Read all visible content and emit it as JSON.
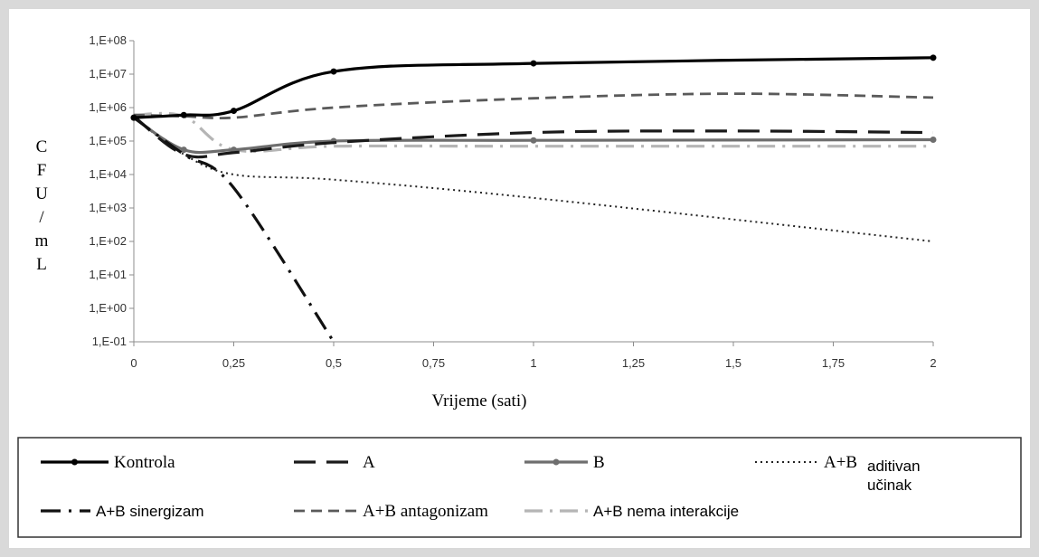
{
  "chart_data": {
    "type": "line",
    "title": "",
    "xlabel": "Vrijeme (sati)",
    "ylabel": "CFU/mL",
    "ylabel_chars": [
      "C",
      "F",
      "U",
      "/",
      "m",
      "L"
    ],
    "y_scale": "log",
    "xlim": [
      0,
      2
    ],
    "ylim_exp": [
      -1,
      8
    ],
    "x_ticks": [
      0,
      0.25,
      0.5,
      0.75,
      1,
      1.25,
      1.5,
      1.75,
      2
    ],
    "x_tick_labels": [
      "0",
      "0,25",
      "0,5",
      "0,75",
      "1",
      "1,25",
      "1,5",
      "1,75",
      "2"
    ],
    "y_tick_labels": [
      "1,E+08",
      "1,E+07",
      "1,E+06",
      "1,E+05",
      "1,E+04",
      "1,E+03",
      "1,E+02",
      "1,E+01",
      "1,E+00",
      "1,E-01"
    ],
    "grid": false,
    "legend_position": "bottom",
    "series": [
      {
        "name": "Kontrola",
        "color": "#000000",
        "dash": "none",
        "width": 3.2,
        "markers": true,
        "x": [
          0,
          0.125,
          0.25,
          0.5,
          1,
          2
        ],
        "y": [
          500000.0,
          600000.0,
          800000.0,
          12000000.0,
          21000000.0,
          31000000.0
        ]
      },
      {
        "name": "A",
        "color": "#1a1a1a",
        "dash": "24 12",
        "width": 3.2,
        "markers": false,
        "x": [
          0,
          0.125,
          0.25,
          0.5,
          1,
          1.5,
          2
        ],
        "y": [
          550000.0,
          40000.0,
          45000.0,
          90000.0,
          180000.0,
          200000.0,
          180000.0
        ]
      },
      {
        "name": "B",
        "color": "#6e6e6e",
        "dash": "none",
        "width": 3.2,
        "markers": true,
        "x": [
          0,
          0.125,
          0.25,
          0.5,
          1,
          2
        ],
        "y": [
          500000.0,
          55000.0,
          55000.0,
          100000.0,
          105000.0,
          110000.0
        ]
      },
      {
        "name": "A+B aditivan učinak",
        "color": "#222222",
        "dash": "2 4",
        "width": 2,
        "markers": false,
        "x": [
          0,
          0.125,
          0.25,
          0.5,
          1,
          2
        ],
        "y": [
          500000.0,
          40000.0,
          10000.0,
          7000.0,
          2000.0,
          100.0
        ]
      },
      {
        "name": "A+B sinergizam",
        "color": "#111111",
        "dash": "22 9 3 9",
        "width": 3.2,
        "markers": false,
        "x": [
          0,
          0.125,
          0.25,
          0.5
        ],
        "y": [
          500000.0,
          40000.0,
          4000.0,
          0.1
        ]
      },
      {
        "name": "A+B antagonizam",
        "color": "#5a5a5a",
        "dash": "12 7",
        "width": 2.8,
        "markers": false,
        "x": [
          0,
          0.125,
          0.25,
          0.5,
          1,
          1.5,
          2
        ],
        "y": [
          600000.0,
          550000.0,
          500000.0,
          1000000.0,
          1900000.0,
          2600000.0,
          2000000.0
        ]
      },
      {
        "name": "A+B nema interakcije",
        "color": "#b5b5b5",
        "dash": "20 8 3 8",
        "width": 3.2,
        "markers": false,
        "x": [
          0,
          0.125,
          0.25,
          0.5,
          1,
          2
        ],
        "y": [
          600000.0,
          550000.0,
          55000.0,
          70000.0,
          70000.0,
          70000.0
        ]
      }
    ],
    "legend": {
      "items": [
        {
          "label": "Kontrola",
          "series": 0
        },
        {
          "label": "A",
          "series": 1
        },
        {
          "label": "B",
          "series": 2
        },
        {
          "label": "A+B",
          "label2a": "aditivan",
          "label2b": "učinak",
          "series": 3
        },
        {
          "label": "A+B sinergizam",
          "series": 4
        },
        {
          "label": "A+B antagonizam",
          "series": 5
        },
        {
          "label": "A+B nema interakcije",
          "series": 6
        }
      ]
    }
  }
}
